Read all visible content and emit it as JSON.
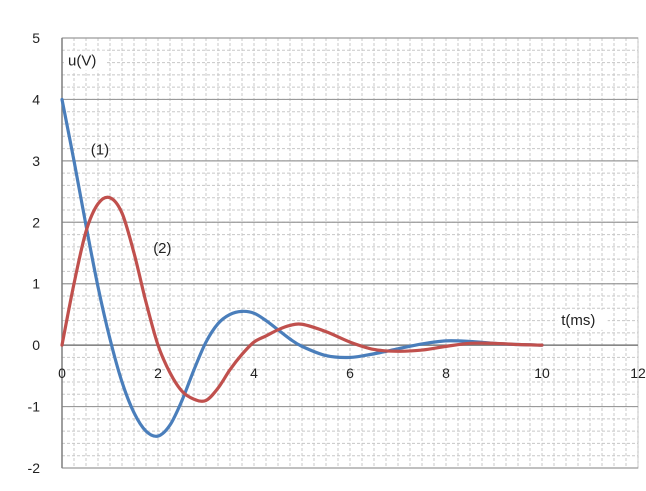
{
  "chart_data": {
    "type": "line",
    "xlabel": "t(ms)",
    "ylabel": "u(V)",
    "xlim": [
      0,
      12
    ],
    "ylim": [
      -2,
      5
    ],
    "x_ticks": [
      0,
      2,
      4,
      6,
      8,
      10,
      12
    ],
    "x_tick_labels": [
      "0",
      "2",
      "4",
      "6",
      "8",
      "10",
      "12"
    ],
    "y_ticks": [
      -2,
      -1,
      0,
      1,
      2,
      3,
      4,
      5
    ],
    "y_tick_labels": [
      "-2",
      "-1",
      "0",
      "1",
      "2",
      "3",
      "4",
      "5"
    ],
    "grid": true,
    "series": [
      {
        "name": "(1)",
        "color": "#4a7ebb",
        "x": [
          0,
          0.25,
          0.5,
          0.75,
          1.0,
          1.25,
          1.5,
          1.75,
          2.0,
          2.25,
          2.5,
          2.75,
          3.0,
          3.25,
          3.5,
          3.75,
          4.0,
          4.25,
          4.5,
          4.75,
          5.0,
          5.5,
          6.0,
          6.5,
          7.0,
          7.5,
          8.0,
          8.5,
          9.0,
          9.5,
          10.0
        ],
        "values": [
          4.0,
          3.0,
          1.95,
          0.95,
          0.1,
          -0.6,
          -1.1,
          -1.4,
          -1.48,
          -1.3,
          -0.9,
          -0.4,
          0.05,
          0.35,
          0.5,
          0.55,
          0.52,
          0.4,
          0.25,
          0.1,
          -0.02,
          -0.17,
          -0.2,
          -0.14,
          -0.06,
          0.02,
          0.07,
          0.06,
          0.03,
          0.01,
          0.0
        ]
      },
      {
        "name": "(2)",
        "color": "#c0504d",
        "x": [
          0,
          0.25,
          0.5,
          0.75,
          1.0,
          1.25,
          1.5,
          1.75,
          2.0,
          2.25,
          2.5,
          2.75,
          3.0,
          3.25,
          3.5,
          3.75,
          4.0,
          4.25,
          4.5,
          4.75,
          5.0,
          5.5,
          6.0,
          6.5,
          7.0,
          7.5,
          8.0,
          8.5,
          9.0,
          9.5,
          10.0
        ],
        "values": [
          0.0,
          1.0,
          1.85,
          2.3,
          2.4,
          2.15,
          1.5,
          0.7,
          0.0,
          -0.45,
          -0.75,
          -0.88,
          -0.9,
          -0.7,
          -0.4,
          -0.15,
          0.05,
          0.15,
          0.25,
          0.32,
          0.34,
          0.22,
          0.05,
          -0.07,
          -0.1,
          -0.08,
          -0.02,
          0.03,
          0.03,
          0.01,
          0.0
        ]
      }
    ],
    "annotations": [
      {
        "text": "(1)",
        "x": 0.6,
        "y": 3.1
      },
      {
        "text": "(2)",
        "x": 1.9,
        "y": 1.5
      }
    ]
  }
}
